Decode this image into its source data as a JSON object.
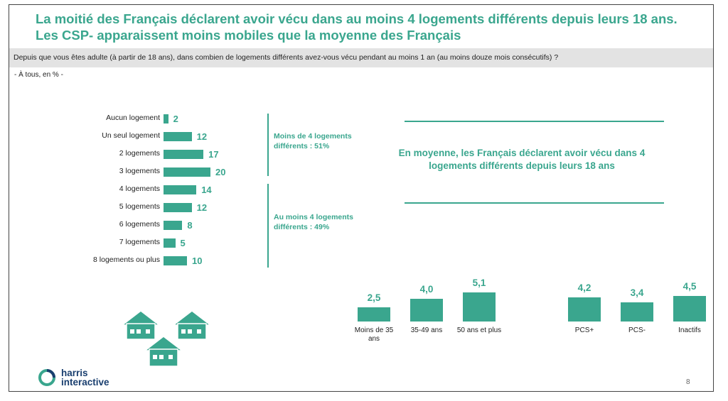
{
  "title": {
    "line1": "La moitié des Français déclarent avoir vécu dans au moins 4 logements différents depuis leurs 18 ans.",
    "line2": "Les CSP- apparaissent moins mobiles que la moyenne des Français"
  },
  "question": "Depuis que vous êtes adulte (à partir de 18 ans), dans combien de logements différents avez-vous vécu pendant au moins 1 an (au moins douze mois consécutifs) ?",
  "base": "- À tous, en % -",
  "groups": [
    {
      "label_line1": "Moins de 4 logements",
      "label_line2": "différents : 51%"
    },
    {
      "label_line1": "Au moins 4 logements",
      "label_line2": "différents : 49%"
    }
  ],
  "average_text": {
    "line1": "En moyenne, les Français déclarent avoir vécu dans 4",
    "line2": "logements différents depuis leurs 18 ans"
  },
  "chart_data": [
    {
      "type": "bar",
      "orientation": "horizontal",
      "categories": [
        "Aucun logement",
        "Un seul logement",
        "2 logements",
        "3 logements",
        "4 logements",
        "5 logements",
        "6 logements",
        "7 logements",
        "8 logements ou plus"
      ],
      "values": [
        2,
        12,
        17,
        20,
        14,
        12,
        8,
        5,
        10
      ],
      "value_labels": [
        "2",
        "12",
        "17",
        "20",
        "14",
        "12",
        "8",
        "5",
        "10"
      ]
    },
    {
      "type": "bar",
      "orientation": "vertical",
      "categories": [
        "Moins de 35 ans",
        "35-49 ans",
        "50 ans et plus",
        "PCS+",
        "PCS-",
        "Inactifs"
      ],
      "values": [
        2.5,
        4.0,
        5.1,
        4.2,
        3.4,
        4.5
      ],
      "value_labels": [
        "2,5",
        "4,0",
        "5,1",
        "4,2",
        "3,4",
        "4,5"
      ]
    }
  ],
  "colors": {
    "accent": "#3aa68e",
    "logo_navy": "#1a3f6f"
  },
  "logo": {
    "line1": "harris",
    "line2": "interactive"
  },
  "page_number": "8"
}
